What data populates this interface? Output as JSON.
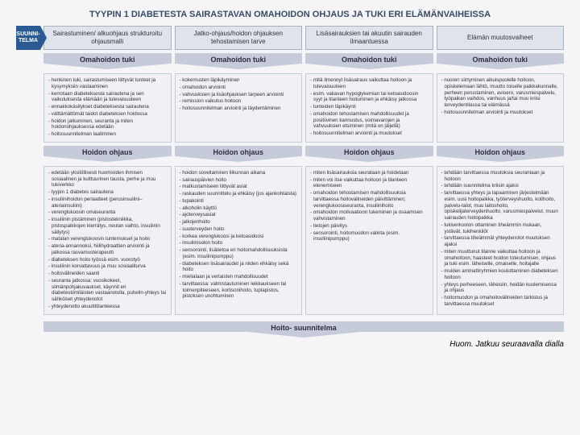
{
  "title": "TYYPIN 1 DIABETESTA SAIRASTAVAN OMAHOIDON OHJAUS JA TUKI ERI ELÄMÄNVAIHEISSA",
  "plan_badge": "SUUNNI-\nTELMA",
  "col_heads": [
    "Sairastuminen/\nalkuohjaus strukturoitu\nohjausmalli",
    "Jatko-ohjaus/hoidon\nohjauksen tehostamisen\ntarve",
    "Lisäsairauksien tai\nakuutin sairauden\nilmaantuessa",
    "Elämän\nmuutosvaiheet"
  ],
  "band1_label": "Omahoidon tuki",
  "band1": [
    [
      "- henkinen tuki, sairastumiseen liittyvät tunteet ja kysymyksiin vastaaminen",
      "- kerrotaan diabeteksesta sairautena ja sen vaikutuksesta elämään ja tulevaisuuteen",
      "- ennakkokäsitykset diabeteksesta sairautena",
      "- välttämättömät taidot diabeteksen hoidossa",
      "- hoidon jatkuminen, seuranta ja miten hoidonohjauksessa edetään",
      "- hoitosuunnitelman laatiminen"
    ],
    [
      "- kokemusten läpikäyminen",
      "- omahoidon arviointi",
      "- vahvuuksien ja lisäohjauksen tarpeen arviointi",
      "- remission vaikutus hoitoon",
      "- hoitosuunnitelman arviointi ja täydentäminen"
    ],
    [
      "- mitä ilmennyt lisäsairaus vaikuttaa hoitoon ja tulevaisuuteen",
      "- esim. vakavan hypoglykemian tai ketoasidoosin syyt ja tilanteen hoituminen ja ehkäisy jatkossa",
      "- tunteiden läpikäynti",
      "- omahoidon tehostamisen mahdollisuudet ja positiivinen kannustus, voimavarojen ja vahvuuksien etsiminen (mitä on jäljellä)",
      "- hoitosuunnitelman arviointi ja muutokset"
    ],
    [
      "- nuoren siirtyminen aikuispuolelle hoitoon, opiskelemaan lähtö, muutto toiselle paikkakunnalle, perheen perustaminen, avioero, varusmiespalvelu, työpaikan vaihdos, vanhuus ja/tai muu kriisi terveydentilassa tai elämässä",
      "- hoitosuunnitelman arviointi ja muutokset"
    ]
  ],
  "band2_label": "Hoidon ohjaus",
  "band2": [
    [
      "- edetään yksilöllisesti huomioiden ihmisen sosiaalinen ja kulttuurinen tausta, perhe ja muu tukiverkko",
      "- tyypin 1 diabetes sairautena",
      "- insuliinihoidon periaatteet (perusinsuliini–ateriainsuliini)",
      "- verenglukoosin omaseuranta",
      "- insuliinin pistäminen (pistostekniikka, pistospaikkojen kierrätys, neulan vaihto, insuliinin säilytys)",
      "- matalan verenglukoosin tuntemukset ja hoito",
      "- ateria-annannoksi, hiilihydraattien arviointi ja jatkossa rasvamusterapeutti",
      "- diabeteksen hoito työssä esim. vuorotyö",
      "- insuliinin korvattavuus ja muu sosiaaliturva",
      "- hoitovälineiden saanti",
      "- seuranta jatkossa: vuosikokeet, silmänpohjakuvaukset, käynnit eri diabetestiimiläisten vastaanotolla, puhelin-yhteys tai sähköiset yhteydenotot",
      "- yhteydenotto akuuttitilanteessa"
    ],
    [
      "- hoidon soveltaminen liikunnan aikana",
      "- sairauspäivien hoito",
      "- matkustamiseen liittyvät asiat",
      "- raskauden suunnittelu ja ehkäisy (jos ajankohtaista)",
      "- tupakointi",
      "- alkoholin käyttö",
      "- ajoterveysasiat",
      "- jalkojenhoito",
      "- suuterveyden hoito",
      "- korkea verenglukoosi ja ketoasidoosi",
      "- insuliinisokin hoito",
      "- sensorointi, lisätietoa eri hoitomahdollisuuksista (esim. insuliinipumppu)",
      "- diabeteksen lisäsairaudet ja niiden ehkäisy sekä hoito",
      "- mielialaan ja vertaisten mahdollisuudet",
      "- tarvittaessa: valmistautuminen leikkaukseen tai toimenpiteeseen, kortisonihoito, tuplapistos, pistoksen unohtuminen"
    ],
    [
      "- miten lisäsairauksia seurataan ja hoidetaan",
      "- miten voi itse vaikuttaa hoitoon ja tilanteen etenemiseen",
      "- omahoidon tehostamisen mahdollisuuksia tarvittaessa hoitovalineiden päivittäminen; verenglukoosiseuranta, insuliinihoito",
      "- omahoidon motivaatioon tukeminen ja osaamisen vahvistaminen",
      "- tietojen päivitys",
      "- sensorointi, hoitomuodon valinta (esim. insuliinipumppu)"
    ],
    [
      "- tehdään tarvittaessa muutoksia seurantaan ja hoitoon",
      "- tehdään suunnitelma kriisin ajaksi",
      "- tarvittaessa yhteys ja tapaaminen järjestelmään esim. uusi hoitopaikka, työterveyshuolto, kotihoito, palvelu-talot, muu laitoshoito, opiskelijaterveydenhuolto, varusmiespalvelut, muun sairauden hoitopaikka",
      "- tukiverkoston ottaminen tiheämmin mukaan, ystävät, tukihenkilöt",
      "- tarvittaessa tiheämmät yhteydenotot muutoksen ajaksi",
      "- miten muuttunut tilanne vaikuttaa hoitoon ja omahoitoon, haasteet hoidon toteutumisen, ohjaus ja tuki esim. läheiselle, omaiselle, hoitajalle",
      "- muiden ammattiryhmien kouluttaminen diabeteksen hoitoon",
      "- yhteys perheeseen, läheisiin, heidän kuulemisensa ja ohjaus",
      "- hoitomuodon ja omahoitovälineiden tarkistus ja tarvittaessa muutokset"
    ]
  ],
  "plan_wide": "Hoito-\nsuunnitelma",
  "footer": "Huom. Jatkuu seuraavalla dialla"
}
